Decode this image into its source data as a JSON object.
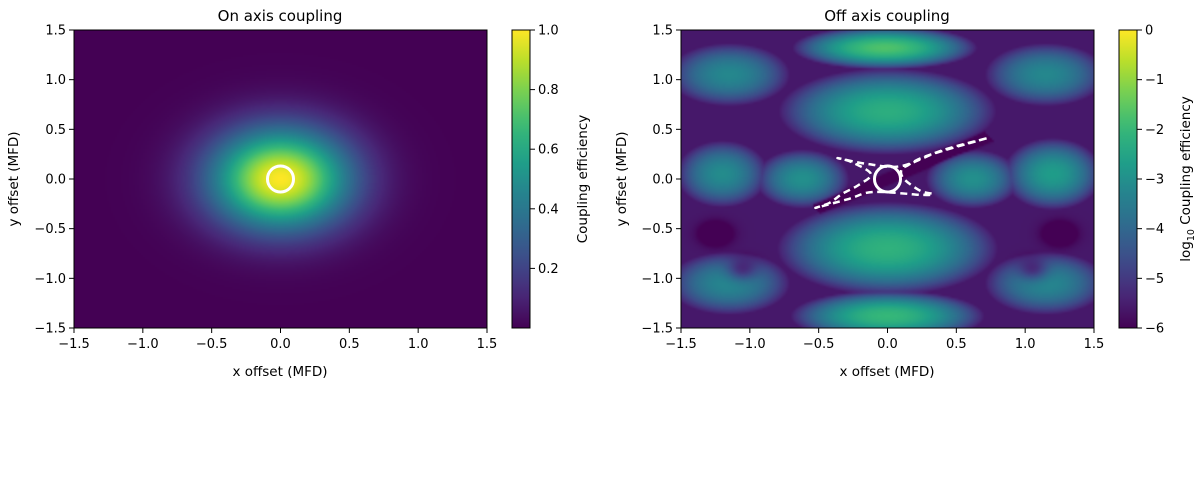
{
  "chart_data": [
    {
      "type": "heatmap",
      "title": "On axis coupling",
      "xlabel": "x offset (MFD)",
      "ylabel": "y offset (MFD)",
      "xlim": [
        -1.5,
        1.5
      ],
      "ylim": [
        -1.5,
        1.5
      ],
      "xticks": [
        -1.5,
        -1.0,
        -0.5,
        0.0,
        0.5,
        1.0,
        1.5
      ],
      "yticks": [
        -1.5,
        -1.0,
        -0.5,
        0.0,
        0.5,
        1.0,
        1.5
      ],
      "xtick_labels": [
        "−1.5",
        "−1.0",
        "−0.5",
        "0.0",
        "0.5",
        "1.0",
        "1.5"
      ],
      "ytick_labels": [
        "−1.5",
        "−1.0",
        "−0.5",
        "0.0",
        "0.5",
        "1.0",
        "1.5"
      ],
      "colormap": "viridis",
      "colorbar": {
        "label": "Coupling efficiency",
        "range": [
          0.0,
          1.0
        ],
        "ticks": [
          0.2,
          0.4,
          0.6,
          0.8,
          1.0
        ],
        "tick_labels": [
          "0.2",
          "0.4",
          "0.6",
          "0.8",
          "1.0"
        ]
      },
      "field": "gaussian peak 1.0 at (0,0), 1/e radius about 0.5 MFD",
      "annotations": [
        {
          "shape": "circle",
          "style": "solid",
          "color": "#ffffff",
          "center": [
            0.0,
            0.0
          ],
          "radius": 0.11
        }
      ]
    },
    {
      "type": "heatmap",
      "title": "Off axis coupling",
      "xlabel": "x offset (MFD)",
      "ylabel": "y offset (MFD)",
      "xlim": [
        -1.5,
        1.5
      ],
      "ylim": [
        -1.5,
        1.5
      ],
      "xticks": [
        -1.5,
        -1.0,
        -0.5,
        0.0,
        0.5,
        1.0,
        1.5
      ],
      "yticks": [
        -1.5,
        -1.0,
        -0.5,
        0.0,
        0.5,
        1.0,
        1.5
      ],
      "xtick_labels": [
        "−1.5",
        "−1.0",
        "−0.5",
        "0.0",
        "0.5",
        "1.0",
        "1.5"
      ],
      "ytick_labels": [
        "−1.5",
        "−1.0",
        "−0.5",
        "0.0",
        "0.5",
        "1.0",
        "1.5"
      ],
      "colormap": "viridis",
      "colorbar": {
        "label_prefix": "log",
        "label_subscript": "10",
        "label_suffix": " Coupling efficiency",
        "range": [
          -6,
          0
        ],
        "ticks": [
          -6,
          -5,
          -4,
          -3,
          -2,
          -1,
          0
        ],
        "tick_labels": [
          "−6",
          "−5",
          "−4",
          "−3",
          "−2",
          "−1",
          "0"
        ]
      },
      "field": "log10 efficiency; lobes near -2.2 at y=+/-0.7, near -3 at (+/-0.6,0), dark diagonal streak from (-0.5,-0.3) to (0.7,0.4)",
      "annotations": [
        {
          "shape": "circle",
          "style": "solid",
          "color": "#ffffff",
          "center": [
            0.0,
            0.0
          ],
          "radius": 0.11
        },
        {
          "shape": "closed-curve",
          "style": "dashed",
          "color": "#ffffff",
          "points": [
            [
              0.72,
              0.41
            ],
            [
              0.3,
              0.24
            ],
            [
              0.15,
              0.14
            ],
            [
              0.1,
              0.09
            ],
            [
              0.12,
              0.0
            ],
            [
              0.24,
              -0.12
            ],
            [
              0.33,
              -0.15
            ],
            [
              0.25,
              -0.16
            ],
            [
              -0.1,
              -0.13
            ],
            [
              -0.28,
              -0.2
            ],
            [
              -0.52,
              -0.29
            ],
            [
              -0.42,
              -0.24
            ],
            [
              -0.33,
              -0.15
            ],
            [
              -0.21,
              -0.06
            ],
            [
              -0.12,
              0.05
            ],
            [
              -0.26,
              0.17
            ],
            [
              -0.36,
              0.21
            ],
            [
              -0.14,
              0.15
            ],
            [
              0.1,
              0.13
            ],
            [
              0.4,
              0.29
            ],
            [
              0.72,
              0.41
            ]
          ]
        }
      ]
    }
  ]
}
